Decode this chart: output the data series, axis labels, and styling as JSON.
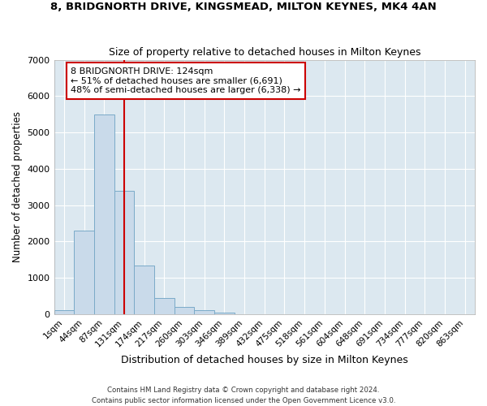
{
  "title1": "8, BRIDGNORTH DRIVE, KINGSMEAD, MILTON KEYNES, MK4 4AN",
  "title2": "Size of property relative to detached houses in Milton Keynes",
  "xlabel": "Distribution of detached houses by size in Milton Keynes",
  "ylabel": "Number of detached properties",
  "categories": [
    "1sqm",
    "44sqm",
    "87sqm",
    "131sqm",
    "174sqm",
    "217sqm",
    "260sqm",
    "303sqm",
    "346sqm",
    "389sqm",
    "432sqm",
    "475sqm",
    "518sqm",
    "561sqm",
    "604sqm",
    "648sqm",
    "691sqm",
    "734sqm",
    "777sqm",
    "820sqm",
    "863sqm"
  ],
  "bar_values": [
    100,
    2300,
    5500,
    3400,
    1350,
    450,
    200,
    100,
    50,
    0,
    0,
    0,
    0,
    0,
    0,
    0,
    0,
    0,
    0,
    0,
    0
  ],
  "bar_color": "#c9daea",
  "bar_edge_color": "#7aaac8",
  "ylim": [
    0,
    7000
  ],
  "yticks": [
    0,
    1000,
    2000,
    3000,
    4000,
    5000,
    6000,
    7000
  ],
  "vline_x_index": 3,
  "vline_color": "#cc0000",
  "annotation_text": "8 BRIDGNORTH DRIVE: 124sqm\n← 51% of detached houses are smaller (6,691)\n48% of semi-detached houses are larger (6,338) →",
  "annotation_box_color": "white",
  "annotation_box_edge": "#cc0000",
  "footer1": "Contains HM Land Registry data © Crown copyright and database right 2024.",
  "footer2": "Contains public sector information licensed under the Open Government Licence v3.0.",
  "fig_bg_color": "#ffffff",
  "plot_bg_color": "#dce8f0",
  "grid_color": "white"
}
